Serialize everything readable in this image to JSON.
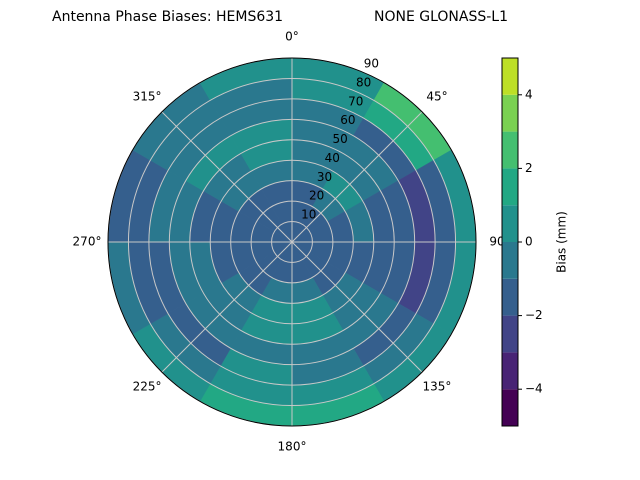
{
  "chart_data": {
    "type": "polar-contour",
    "title": "Antenna Phase Biases: HEMS631",
    "subtitle": "NONE GLONASS-L1",
    "zenith_bins": [
      0,
      10,
      20,
      30,
      40,
      50,
      60,
      70,
      80,
      90
    ],
    "azimuth_bins": [
      0,
      30,
      60,
      90,
      120,
      150,
      180,
      210,
      240,
      270,
      300,
      330,
      360
    ],
    "values": [
      [
        -1.5,
        -1.5,
        -1.5,
        -1.5,
        -1.5,
        -1.5,
        -1.5,
        -1.5,
        -1.5,
        -1.5,
        -1.5,
        -1.5
      ],
      [
        -1.5,
        -1.5,
        -1.5,
        -1.5,
        -1.5,
        -1.5,
        -1.5,
        -1.5,
        -1.5,
        -1.5,
        -1.5,
        -1.5
      ],
      [
        -1.5,
        -0.5,
        -1.5,
        -1.5,
        -1.5,
        -0.5,
        -0.5,
        -1.5,
        -1.5,
        -1.5,
        -1.5,
        -1.5
      ],
      [
        -0.5,
        0.5,
        -0.5,
        -1.5,
        -0.5,
        0.5,
        0.5,
        -0.5,
        -1.5,
        -1.5,
        -0.5,
        -0.5
      ],
      [
        -0.5,
        -0.5,
        -1.5,
        -1.5,
        -0.5,
        0.5,
        0.5,
        -0.5,
        -0.5,
        -1.5,
        -0.5,
        0.5
      ],
      [
        -0.5,
        -0.5,
        -1.5,
        -1.5,
        -0.5,
        -0.5,
        -0.5,
        -0.5,
        -0.5,
        -0.5,
        0.5,
        0.5
      ],
      [
        -0.5,
        -1.5,
        -2.5,
        -2.5,
        -1.5,
        -0.5,
        0.5,
        -1.5,
        -1.5,
        -0.5,
        -0.5,
        -0.5
      ],
      [
        0.5,
        1.5,
        -1.5,
        -1.5,
        -0.5,
        0.5,
        0.5,
        -0.5,
        -1.5,
        -1.5,
        -0.5,
        -0.5
      ],
      [
        0.5,
        2.5,
        0.5,
        0.5,
        0.5,
        1.5,
        1.5,
        0.5,
        -0.5,
        -1.5,
        -0.5,
        0.5
      ]
    ],
    "rlim": [
      0,
      90
    ],
    "rticks": [
      10,
      20,
      30,
      40,
      50,
      60,
      70,
      80,
      90
    ],
    "thetaticks": [
      {
        "value": 0,
        "label": "0°"
      },
      {
        "value": 45,
        "label": "45°"
      },
      {
        "value": 90,
        "label": "90"
      },
      {
        "value": 135,
        "label": "135°"
      },
      {
        "value": 180,
        "label": "180°"
      },
      {
        "value": 225,
        "label": "225°"
      },
      {
        "value": 270,
        "label": "270°"
      },
      {
        "value": 315,
        "label": "315°"
      }
    ],
    "grid": true,
    "colorbar": {
      "label": "Bias (mm)",
      "levels": [
        -5,
        -4,
        -3,
        -2,
        -1,
        0,
        1,
        2,
        3,
        4,
        5
      ],
      "colors": [
        "#440154",
        "#482475",
        "#414487",
        "#355f8d",
        "#2a788e",
        "#21918c",
        "#22a884",
        "#44bf70",
        "#7ad151",
        "#bddf26"
      ],
      "ticks": [
        {
          "value": -4,
          "label": "−4"
        },
        {
          "value": -2,
          "label": "−2"
        },
        0,
        2,
        4
      ]
    }
  }
}
